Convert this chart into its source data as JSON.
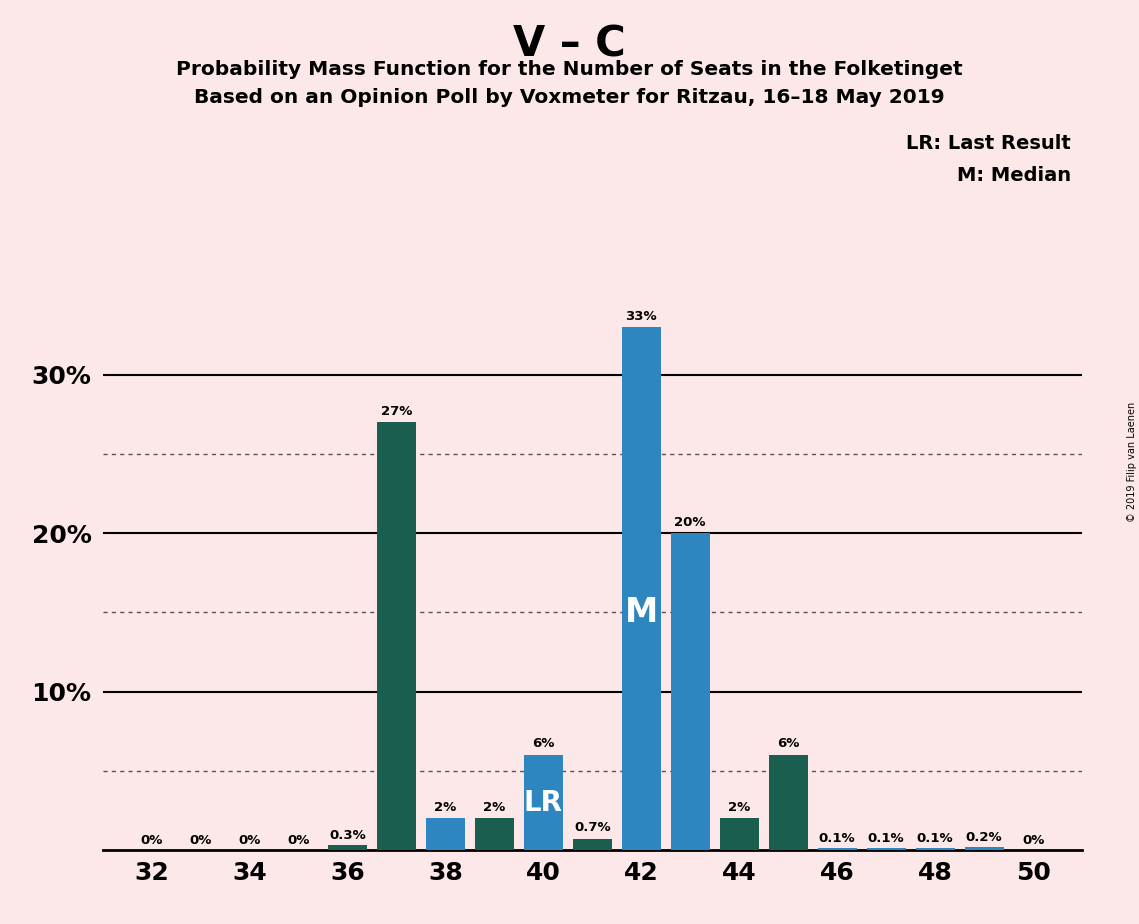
{
  "title_main": "V – C",
  "title_sub1": "Probability Mass Function for the Number of Seats in the Folketinget",
  "title_sub2": "Based on an Opinion Poll by Voxmeter for Ritzau, 16–18 May 2019",
  "background_color": "#fce8e8",
  "seats": [
    32,
    33,
    34,
    35,
    36,
    37,
    38,
    39,
    40,
    41,
    42,
    43,
    44,
    45,
    46,
    47,
    48,
    49,
    50
  ],
  "values": [
    0.0,
    0.0,
    0.0,
    0.0,
    0.3,
    27.0,
    2.0,
    2.0,
    6.0,
    0.7,
    33.0,
    20.0,
    2.0,
    6.0,
    0.1,
    0.1,
    0.1,
    0.2,
    0.0
  ],
  "colors": [
    "#2e86c1",
    "#2e86c1",
    "#2e86c1",
    "#2e86c1",
    "#1a5e50",
    "#1a5e50",
    "#2e86c1",
    "#1a5e50",
    "#2e86c1",
    "#1a5e50",
    "#2e86c1",
    "#2e86c1",
    "#1a5e50",
    "#1a5e50",
    "#2e86c1",
    "#2e86c1",
    "#2e86c1",
    "#2e86c1",
    "#2e86c1"
  ],
  "labels": [
    "0%",
    "0%",
    "0%",
    "0%",
    "0.3%",
    "27%",
    "2%",
    "2%",
    "6%",
    "0.7%",
    "33%",
    "20%",
    "2%",
    "6%",
    "0.1%",
    "0.1%",
    "0.1%",
    "0.2%",
    "0%"
  ],
  "median_seat": 42,
  "lr_seat": 40,
  "legend_lr": "LR: Last Result",
  "legend_m": "M: Median",
  "ylim": [
    0,
    35
  ],
  "ytick_positions": [
    10,
    20,
    30
  ],
  "ytick_labels": [
    "10%",
    "20%",
    "30%"
  ],
  "dotted_gridlines": [
    5,
    15,
    25
  ],
  "xtick_positions": [
    32,
    34,
    36,
    38,
    40,
    42,
    44,
    46,
    48,
    50
  ],
  "xtick_labels": [
    "32",
    "34",
    "36",
    "38",
    "40",
    "42",
    "44",
    "46",
    "48",
    "50"
  ],
  "copyright": "© 2019 Filip van Laenen",
  "bar_color_blue": "#2e86c1",
  "bar_color_teal": "#1a5e50"
}
